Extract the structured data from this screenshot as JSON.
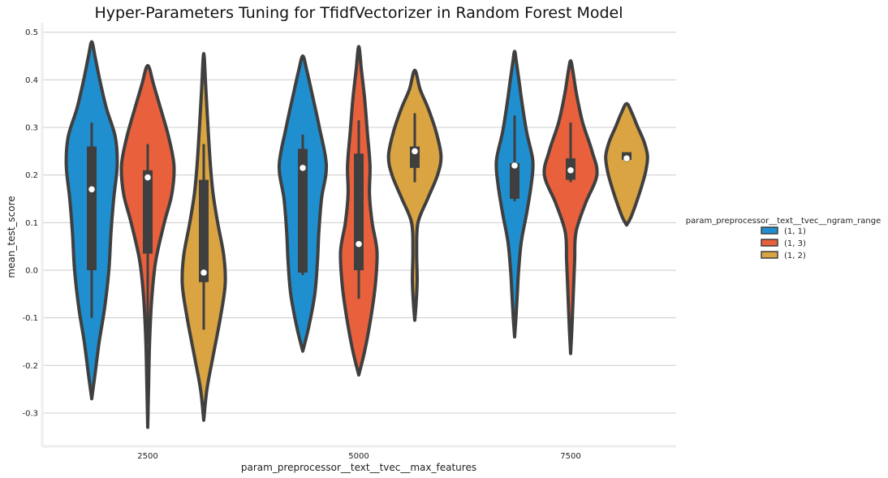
{
  "chart_data": {
    "type": "violin",
    "title": "Hyper-Parameters Tuning for TfidfVectorizer in Random Forest Model",
    "xlabel": "param_preprocessor__text__tvec__max_features",
    "ylabel": "mean_test_score",
    "categories": [
      "2500",
      "5000",
      "7500"
    ],
    "ylim": [
      -0.37,
      0.52
    ],
    "yticks": [
      -0.3,
      -0.2,
      -0.1,
      0.0,
      0.1,
      0.2,
      0.3,
      0.4,
      0.5
    ],
    "ytick_labels": [
      "-0.3",
      "-0.2",
      "-0.1",
      "0.0",
      "0.1",
      "0.2",
      "0.3",
      "0.4",
      "0.5"
    ],
    "grid": true,
    "legend": {
      "title": "param_preprocessor__text__tvec__ngram_range",
      "placement": "right"
    },
    "series": [
      {
        "name": "(1, 1)",
        "color": "#1f8fd0",
        "groups": [
          {
            "min": -0.27,
            "max": 0.48,
            "q1": 0.0,
            "q3": 0.26,
            "median": 0.17,
            "whisker_low": -0.1,
            "whisker_high": 0.31,
            "density": [
              [
                -0.27,
                0.0
              ],
              [
                -0.22,
                0.12
              ],
              [
                -0.15,
                0.28
              ],
              [
                -0.08,
                0.48
              ],
              [
                0.0,
                0.64
              ],
              [
                0.08,
                0.72
              ],
              [
                0.15,
                0.82
              ],
              [
                0.22,
                0.95
              ],
              [
                0.28,
                0.88
              ],
              [
                0.34,
                0.55
              ],
              [
                0.4,
                0.3
              ],
              [
                0.45,
                0.12
              ],
              [
                0.48,
                0.0
              ]
            ]
          },
          {
            "min": -0.17,
            "max": 0.45,
            "q1": -0.005,
            "q3": 0.255,
            "median": 0.215,
            "whisker_low": -0.01,
            "whisker_high": 0.285,
            "density": [
              [
                -0.17,
                0.0
              ],
              [
                -0.12,
                0.22
              ],
              [
                -0.05,
                0.45
              ],
              [
                0.02,
                0.55
              ],
              [
                0.08,
                0.6
              ],
              [
                0.15,
                0.7
              ],
              [
                0.22,
                0.88
              ],
              [
                0.3,
                0.62
              ],
              [
                0.37,
                0.35
              ],
              [
                0.42,
                0.15
              ],
              [
                0.45,
                0.0
              ]
            ]
          },
          {
            "min": -0.14,
            "max": 0.46,
            "q1": 0.15,
            "q3": 0.225,
            "median": 0.22,
            "whisker_low": 0.145,
            "whisker_high": 0.325,
            "density": [
              [
                -0.14,
                0.0
              ],
              [
                -0.1,
                0.05
              ],
              [
                -0.05,
                0.1
              ],
              [
                0.0,
                0.15
              ],
              [
                0.06,
                0.25
              ],
              [
                0.12,
                0.45
              ],
              [
                0.18,
                0.62
              ],
              [
                0.23,
                0.68
              ],
              [
                0.29,
                0.45
              ],
              [
                0.35,
                0.28
              ],
              [
                0.4,
                0.16
              ],
              [
                0.44,
                0.06
              ],
              [
                0.46,
                0.0
              ]
            ]
          }
        ]
      },
      {
        "name": "(1, 3)",
        "color": "#e8603c",
        "groups": [
          {
            "min": -0.33,
            "max": 0.43,
            "q1": 0.035,
            "q3": 0.21,
            "median": 0.195,
            "whisker_low": -0.155,
            "whisker_high": 0.265,
            "density": [
              [
                -0.33,
                0.0
              ],
              [
                -0.25,
                0.03
              ],
              [
                -0.15,
                0.07
              ],
              [
                -0.06,
                0.15
              ],
              [
                0.02,
                0.3
              ],
              [
                0.1,
                0.62
              ],
              [
                0.16,
                0.9
              ],
              [
                0.22,
                0.98
              ],
              [
                0.28,
                0.78
              ],
              [
                0.34,
                0.48
              ],
              [
                0.39,
                0.22
              ],
              [
                0.43,
                0.0
              ]
            ]
          },
          {
            "min": -0.22,
            "max": 0.47,
            "q1": 0.0,
            "q3": 0.245,
            "median": 0.055,
            "whisker_low": -0.06,
            "whisker_high": 0.315,
            "density": [
              [
                -0.22,
                0.0
              ],
              [
                -0.17,
                0.22
              ],
              [
                -0.1,
                0.45
              ],
              [
                -0.03,
                0.62
              ],
              [
                0.04,
                0.68
              ],
              [
                0.1,
                0.5
              ],
              [
                0.16,
                0.4
              ],
              [
                0.22,
                0.42
              ],
              [
                0.29,
                0.32
              ],
              [
                0.36,
                0.22
              ],
              [
                0.42,
                0.1
              ],
              [
                0.47,
                0.0
              ]
            ]
          },
          {
            "min": -0.175,
            "max": 0.44,
            "q1": 0.19,
            "q3": 0.235,
            "median": 0.21,
            "whisker_low": 0.185,
            "whisker_high": 0.31,
            "density": [
              [
                -0.175,
                0.0
              ],
              [
                -0.12,
                0.05
              ],
              [
                -0.05,
                0.1
              ],
              [
                0.02,
                0.15
              ],
              [
                0.08,
                0.2
              ],
              [
                0.14,
                0.55
              ],
              [
                0.2,
                0.98
              ],
              [
                0.25,
                0.8
              ],
              [
                0.31,
                0.45
              ],
              [
                0.37,
                0.22
              ],
              [
                0.42,
                0.08
              ],
              [
                0.44,
                0.0
              ]
            ]
          }
        ]
      },
      {
        "name": "(1, 2)",
        "color": "#d9a441",
        "groups": [
          {
            "min": -0.315,
            "max": 0.455,
            "q1": -0.025,
            "q3": 0.19,
            "median": -0.005,
            "whisker_low": -0.125,
            "whisker_high": 0.265,
            "density": [
              [
                -0.315,
                0.0
              ],
              [
                -0.25,
                0.12
              ],
              [
                -0.18,
                0.35
              ],
              [
                -0.1,
                0.62
              ],
              [
                -0.03,
                0.8
              ],
              [
                0.03,
                0.75
              ],
              [
                0.1,
                0.52
              ],
              [
                0.16,
                0.35
              ],
              [
                0.22,
                0.25
              ],
              [
                0.3,
                0.16
              ],
              [
                0.38,
                0.08
              ],
              [
                0.455,
                0.0
              ]
            ]
          },
          {
            "min": -0.105,
            "max": 0.42,
            "q1": 0.215,
            "q3": 0.26,
            "median": 0.25,
            "whisker_low": 0.185,
            "whisker_high": 0.33,
            "density": [
              [
                -0.105,
                0.0
              ],
              [
                -0.07,
                0.05
              ],
              [
                -0.02,
                0.09
              ],
              [
                0.04,
                0.07
              ],
              [
                0.1,
                0.12
              ],
              [
                0.15,
                0.48
              ],
              [
                0.2,
                0.85
              ],
              [
                0.24,
                0.98
              ],
              [
                0.29,
                0.8
              ],
              [
                0.34,
                0.5
              ],
              [
                0.38,
                0.2
              ],
              [
                0.42,
                0.0
              ]
            ]
          },
          {
            "min": 0.095,
            "max": 0.35,
            "q1": 0.232,
            "q3": 0.248,
            "median": 0.235,
            "whisker_low": 0.232,
            "whisker_high": 0.248,
            "density": [
              [
                0.095,
                0.0
              ],
              [
                0.11,
                0.15
              ],
              [
                0.14,
                0.35
              ],
              [
                0.18,
                0.58
              ],
              [
                0.21,
                0.72
              ],
              [
                0.24,
                0.78
              ],
              [
                0.27,
                0.65
              ],
              [
                0.3,
                0.42
              ],
              [
                0.33,
                0.2
              ],
              [
                0.35,
                0.0
              ]
            ]
          }
        ]
      }
    ]
  }
}
